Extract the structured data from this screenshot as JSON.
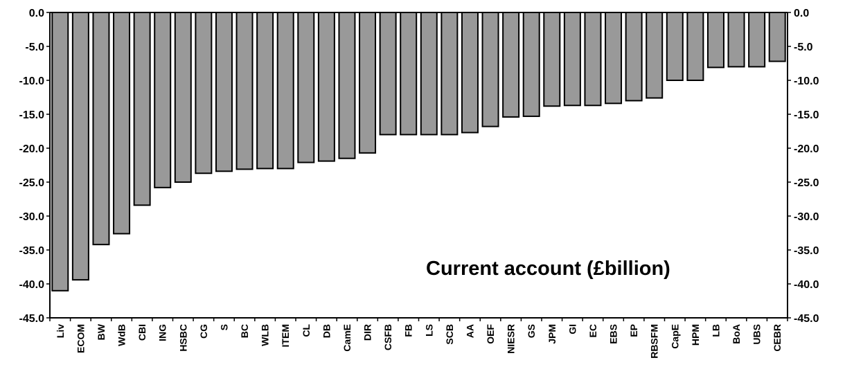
{
  "chart_data": {
    "type": "bar",
    "title": "Current account (£billion)",
    "xlabel": "",
    "ylabel": "",
    "ylim": [
      -45,
      0
    ],
    "y_ticks": [
      "0.0",
      "-5.0",
      "-10.0",
      "-15.0",
      "-20.0",
      "-25.0",
      "-30.0",
      "-35.0",
      "-40.0",
      "-45.0"
    ],
    "grid": false,
    "legend": "none",
    "bar_color": "#999999",
    "categories": [
      "Liv",
      "ECOM",
      "BW",
      "WdB",
      "CBI",
      "ING",
      "HSBC",
      "CG",
      "S",
      "BC",
      "WLB",
      "ITEM",
      "CL",
      "DB",
      "CamE",
      "DIR",
      "CSFB",
      "FB",
      "LS",
      "SCB",
      "AA",
      "OEF",
      "NIESR",
      "GS",
      "JPM",
      "GI",
      "EC",
      "EBS",
      "EP",
      "RBSFM",
      "CapE",
      "HPM",
      "LB",
      "BoA",
      "UBS",
      "CEBR"
    ],
    "values": [
      -41.0,
      -39.4,
      -34.2,
      -32.6,
      -28.4,
      -25.8,
      -25.0,
      -23.7,
      -23.4,
      -23.1,
      -23.0,
      -23.0,
      -22.1,
      -21.9,
      -21.5,
      -20.7,
      -18.0,
      -18.0,
      -18.0,
      -18.0,
      -17.7,
      -16.8,
      -15.4,
      -15.3,
      -13.8,
      -13.7,
      -13.7,
      -13.4,
      -13.0,
      -12.6,
      -10.0,
      -10.0,
      -8.1,
      -8.0,
      -8.0,
      -7.2
    ]
  }
}
